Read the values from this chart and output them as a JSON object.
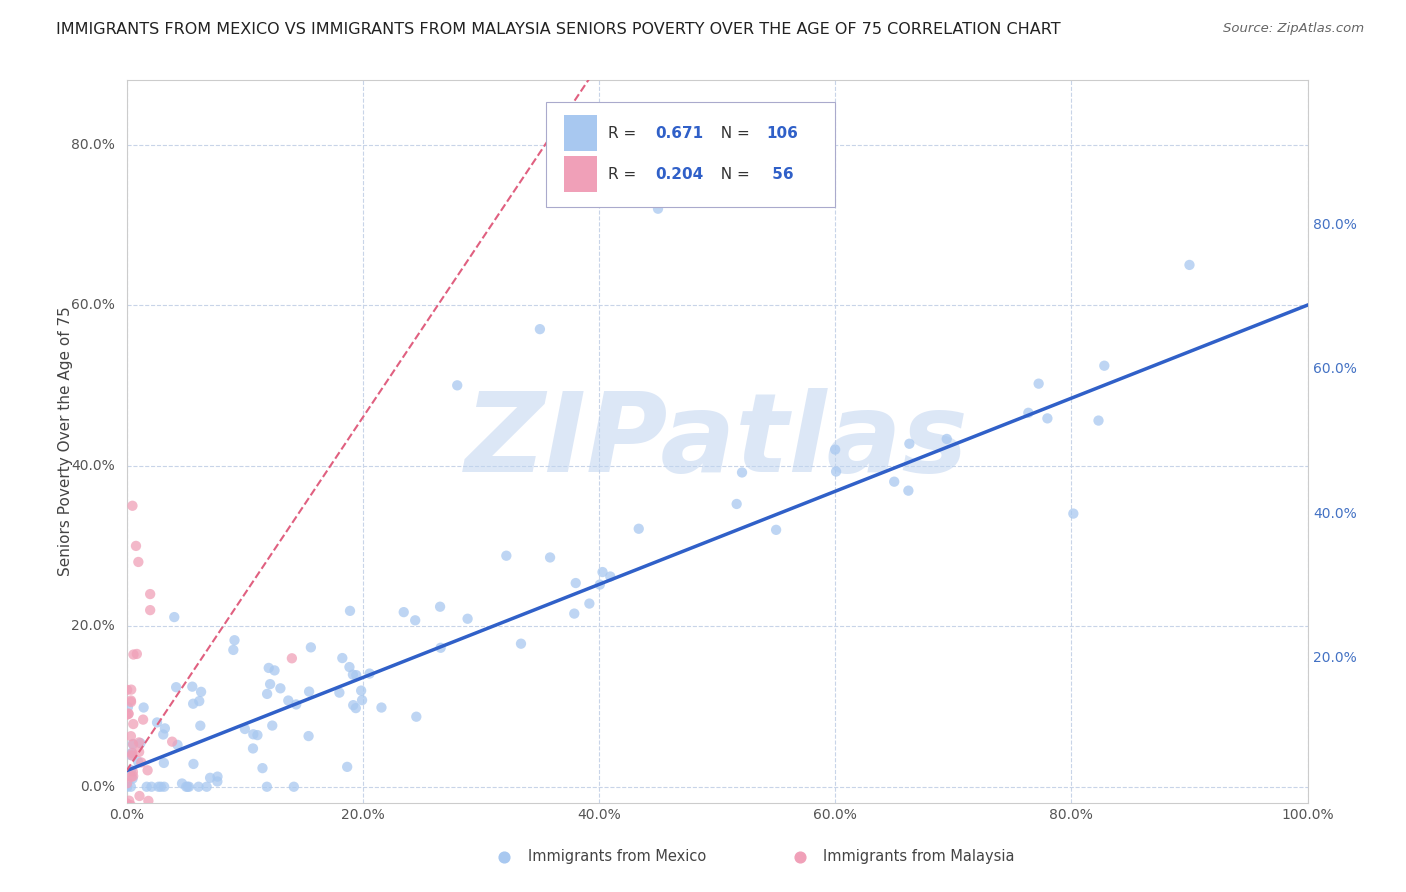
{
  "title": "IMMIGRANTS FROM MEXICO VS IMMIGRANTS FROM MALAYSIA SENIORS POVERTY OVER THE AGE OF 75 CORRELATION CHART",
  "source": "Source: ZipAtlas.com",
  "ylabel": "Seniors Poverty Over the Age of 75",
  "xlim": [
    0,
    1.0
  ],
  "ylim": [
    -0.02,
    0.88
  ],
  "ytick_vals": [
    0.0,
    0.2,
    0.4,
    0.6,
    0.8
  ],
  "xtick_vals": [
    0.0,
    0.2,
    0.4,
    0.6,
    0.8,
    1.0
  ],
  "mexico_color": "#a8c8f0",
  "malaysia_color": "#f0a0b8",
  "mexico_line_color": "#3060c8",
  "malaysia_line_color": "#e06080",
  "right_label_color": "#4472c4",
  "background_color": "#ffffff",
  "grid_color": "#c8d4e8",
  "watermark": "ZIPatlas",
  "watermark_color": "#c0d4f0",
  "mexico_R": 0.671,
  "mexico_N": 106,
  "malaysia_R": 0.204,
  "malaysia_N": 56,
  "legend_label_color": "#3060c8",
  "legend_text_color": "#333333"
}
